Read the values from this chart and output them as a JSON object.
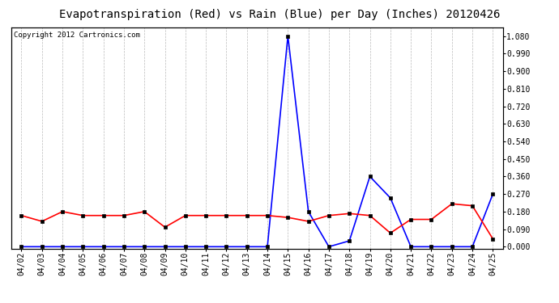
{
  "title": "Evapotranspiration (Red) vs Rain (Blue) per Day (Inches) 20120426",
  "copyright_text": "Copyright 2012 Cartronics.com",
  "dates": [
    "04/02",
    "04/03",
    "04/04",
    "04/05",
    "04/06",
    "04/07",
    "04/08",
    "04/09",
    "04/10",
    "04/11",
    "04/12",
    "04/13",
    "04/14",
    "04/15",
    "04/16",
    "04/17",
    "04/18",
    "04/19",
    "04/20",
    "04/21",
    "04/22",
    "04/23",
    "04/24",
    "04/25"
  ],
  "rain_blue": [
    0.0,
    0.0,
    0.0,
    0.0,
    0.0,
    0.0,
    0.0,
    0.0,
    0.0,
    0.0,
    0.0,
    0.0,
    0.0,
    1.08,
    0.18,
    0.0,
    0.03,
    0.36,
    0.25,
    0.0,
    0.0,
    0.0,
    0.0,
    0.27
  ],
  "et_red": [
    0.16,
    0.13,
    0.18,
    0.16,
    0.16,
    0.16,
    0.18,
    0.1,
    0.16,
    0.16,
    0.16,
    0.16,
    0.16,
    0.15,
    0.13,
    0.16,
    0.17,
    0.16,
    0.07,
    0.14,
    0.14,
    0.22,
    0.21,
    0.04
  ],
  "ylim_min": -0.009,
  "ylim_max": 1.125,
  "yticks": [
    0.0,
    0.09,
    0.18,
    0.27,
    0.36,
    0.45,
    0.54,
    0.63,
    0.72,
    0.81,
    0.9,
    0.99,
    1.08
  ],
  "background_color": "#ffffff",
  "plot_bg_color": "#ffffff",
  "grid_color": "#bbbbbb",
  "blue_color": "#0000ff",
  "red_color": "#ff0000",
  "title_fontsize": 10,
  "tick_fontsize": 7,
  "copyright_fontsize": 6.5
}
